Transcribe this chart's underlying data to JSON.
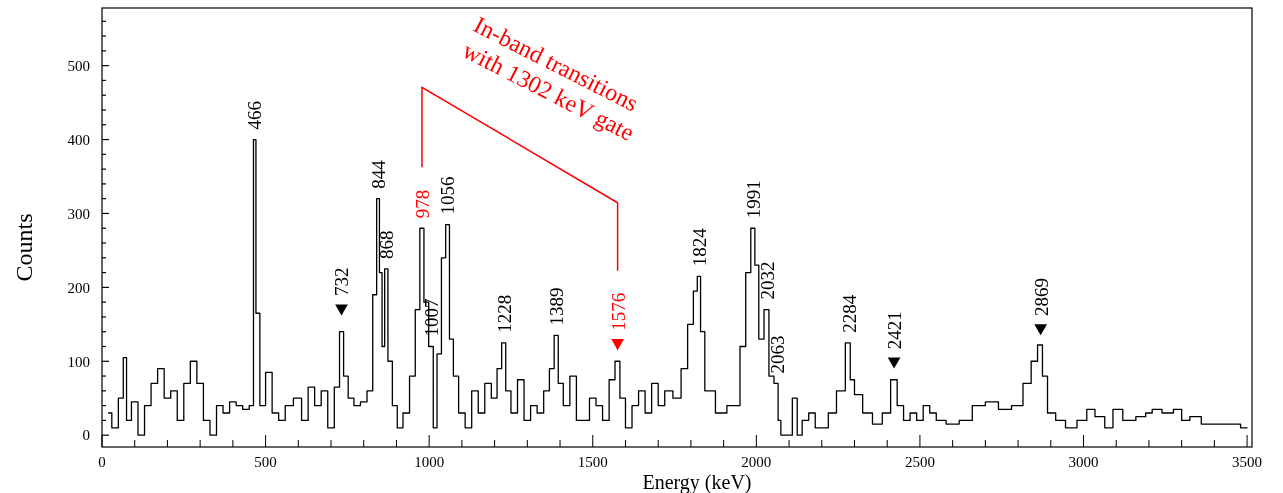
{
  "chart_data": {
    "type": "step",
    "xlabel": "Energy (keV)",
    "ylabel": "Counts",
    "xlim": [
      0,
      3515
    ],
    "ylim": [
      -16,
      578
    ],
    "xticks": [
      0,
      {
        "value": 100,
        "label": null
      },
      {
        "value": 200,
        "label": null
      },
      {
        "value": 300,
        "label": null
      },
      {
        "value": 400,
        "label": null
      },
      500,
      {
        "value": 600,
        "label": null
      },
      {
        "value": 700,
        "label": null
      },
      {
        "value": 800,
        "label": null
      },
      {
        "value": 900,
        "label": null
      },
      1000,
      {
        "value": 1100,
        "label": null
      },
      {
        "value": 1200,
        "label": null
      },
      {
        "value": 1300,
        "label": null
      },
      {
        "value": 1400,
        "label": null
      },
      1500,
      {
        "value": 1600,
        "label": null
      },
      {
        "value": 1700,
        "label": null
      },
      {
        "value": 1800,
        "label": null
      },
      {
        "value": 1900,
        "label": null
      },
      2000,
      {
        "value": 2100,
        "label": null
      },
      {
        "value": 2200,
        "label": null
      },
      {
        "value": 2300,
        "label": null
      },
      {
        "value": 2400,
        "label": null
      },
      2500,
      {
        "value": 2600,
        "label": null
      },
      {
        "value": 2700,
        "label": null
      },
      {
        "value": 2800,
        "label": null
      },
      {
        "value": 2900,
        "label": null
      },
      3000,
      {
        "value": 3100,
        "label": null
      },
      {
        "value": 3200,
        "label": null
      },
      {
        "value": 3300,
        "label": null
      },
      {
        "value": 3400,
        "label": null
      },
      3500
    ],
    "yticks": [
      0,
      {
        "value": 20,
        "label": null
      },
      {
        "value": 40,
        "label": null
      },
      {
        "value": 60,
        "label": null
      },
      {
        "value": 80,
        "label": null
      },
      100,
      {
        "value": 120,
        "label": null
      },
      {
        "value": 140,
        "label": null
      },
      {
        "value": 160,
        "label": null
      },
      {
        "value": 180,
        "label": null
      },
      200,
      {
        "value": 220,
        "label": null
      },
      {
        "value": 240,
        "label": null
      },
      {
        "value": 260,
        "label": null
      },
      {
        "value": 280,
        "label": null
      },
      300,
      {
        "value": 320,
        "label": null
      },
      {
        "value": 340,
        "label": null
      },
      {
        "value": 360,
        "label": null
      },
      {
        "value": 380,
        "label": null
      },
      400,
      {
        "value": 420,
        "label": null
      },
      {
        "value": 440,
        "label": null
      },
      {
        "value": 460,
        "label": null
      },
      {
        "value": 480,
        "label": null
      },
      500,
      {
        "value": 520,
        "label": null
      },
      {
        "value": 540,
        "label": null
      },
      {
        "value": 560,
        "label": null
      }
    ],
    "grid": false,
    "series": [
      {
        "color": "#000000",
        "x": [
          20,
          40,
          60,
          70,
          80,
          100,
          120,
          140,
          160,
          180,
          200,
          220,
          240,
          260,
          280,
          300,
          320,
          340,
          360,
          380,
          400,
          420,
          440,
          460,
          466,
          475,
          490,
          510,
          530,
          550,
          570,
          600,
          620,
          640,
          660,
          680,
          700,
          720,
          732,
          745,
          760,
          780,
          800,
          820,
          835,
          844,
          852,
          860,
          868,
          880,
          895,
          910,
          930,
          950,
          965,
          978,
          990,
          1007,
          1018,
          1030,
          1045,
          1056,
          1068,
          1080,
          1100,
          1120,
          1140,
          1160,
          1180,
          1200,
          1215,
          1228,
          1240,
          1260,
          1280,
          1300,
          1320,
          1340,
          1360,
          1375,
          1389,
          1400,
          1420,
          1440,
          1460,
          1480,
          1500,
          1520,
          1540,
          1560,
          1576,
          1590,
          1610,
          1630,
          1650,
          1670,
          1690,
          1710,
          1730,
          1760,
          1780,
          1800,
          1815,
          1824,
          1835,
          1850,
          1870,
          1880,
          1900,
          1920,
          1940,
          1960,
          1975,
          1991,
          2000,
          2015,
          2032,
          2045,
          2063,
          2070,
          2080,
          2100,
          2120,
          2130,
          2150,
          2170,
          2190,
          2210,
          2230,
          2260,
          2284,
          2290,
          2310,
          2340,
          2370,
          2400,
          2421,
          2440,
          2460,
          2480,
          2500,
          2520,
          2540,
          2560,
          2600,
          2640,
          2680,
          2720,
          2760,
          2800,
          2830,
          2850,
          2869,
          2880,
          2900,
          2930,
          2960,
          3000,
          3020,
          3050,
          3080,
          3100,
          3140,
          3180,
          3200,
          3220,
          3260,
          3290,
          3310,
          3340,
          3380,
          3420,
          3460,
          3500
        ],
        "values": [
          30,
          10,
          50,
          105,
          20,
          45,
          0,
          40,
          70,
          90,
          50,
          60,
          20,
          70,
          100,
          70,
          20,
          0,
          40,
          30,
          45,
          40,
          35,
          40,
          400,
          165,
          40,
          85,
          30,
          20,
          40,
          50,
          20,
          65,
          40,
          60,
          10,
          65,
          140,
          80,
          50,
          40,
          45,
          60,
          190,
          320,
          220,
          120,
          225,
          100,
          40,
          10,
          30,
          80,
          170,
          280,
          180,
          120,
          10,
          110,
          240,
          285,
          130,
          80,
          30,
          10,
          60,
          30,
          70,
          50,
          90,
          125,
          60,
          30,
          75,
          20,
          40,
          30,
          60,
          90,
          135,
          70,
          40,
          80,
          20,
          20,
          50,
          40,
          20,
          75,
          100,
          50,
          10,
          40,
          60,
          30,
          70,
          40,
          60,
          50,
          90,
          150,
          195,
          215,
          140,
          60,
          60,
          30,
          30,
          40,
          40,
          120,
          220,
          280,
          230,
          130,
          170,
          80,
          70,
          20,
          0,
          0,
          50,
          0,
          20,
          30,
          10,
          10,
          30,
          60,
          125,
          75,
          55,
          30,
          15,
          30,
          75,
          40,
          20,
          30,
          20,
          40,
          30,
          20,
          15,
          20,
          40,
          45,
          35,
          40,
          70,
          100,
          122,
          80,
          30,
          20,
          10,
          20,
          35,
          25,
          10,
          35,
          20,
          25,
          30,
          35,
          30,
          35,
          20,
          25,
          15,
          15,
          15,
          10
        ]
      },
      {
        "type": "scatter",
        "marker": "triangle",
        "color": "#000000",
        "x": [
          732,
          2421,
          2869
        ],
        "values": [
          172,
          100,
          145
        ]
      },
      {
        "type": "scatter",
        "marker": "triangle",
        "color": "#ff0000",
        "x": [
          1576
        ],
        "values": [
          125
        ]
      }
    ],
    "annotations": [
      {
        "text": "466",
        "x": 466,
        "y": 400
      },
      {
        "text": "732",
        "x": 732,
        "y": 140
      },
      {
        "text": "844",
        "x": 844,
        "y": 320
      },
      {
        "text": "868",
        "x": 868,
        "y": 225
      },
      {
        "text": "1007",
        "x": 1007,
        "y": 120
      },
      {
        "text": "1056",
        "x": 1056,
        "y": 285
      },
      {
        "text": "1228",
        "x": 1228,
        "y": 125
      },
      {
        "text": "1389",
        "x": 1389,
        "y": 135
      },
      {
        "text": "1824",
        "x": 1824,
        "y": 215
      },
      {
        "text": "1991",
        "x": 1991,
        "y": 280
      },
      {
        "text": "2032",
        "x": 2032,
        "y": 170
      },
      {
        "text": "2063",
        "x": 2063,
        "y": 70
      },
      {
        "text": "2284",
        "x": 2284,
        "y": 125
      },
      {
        "text": "2421",
        "x": 2421,
        "y": 75
      },
      {
        "text": "2869",
        "x": 2869,
        "y": 122
      },
      "In-band transitions\nwith 1302 keV gate",
      {
        "text": "978",
        "x": 978,
        "y": 280
      },
      {
        "text": "1576",
        "x": 1576,
        "y": 100
      }
    ]
  }
}
